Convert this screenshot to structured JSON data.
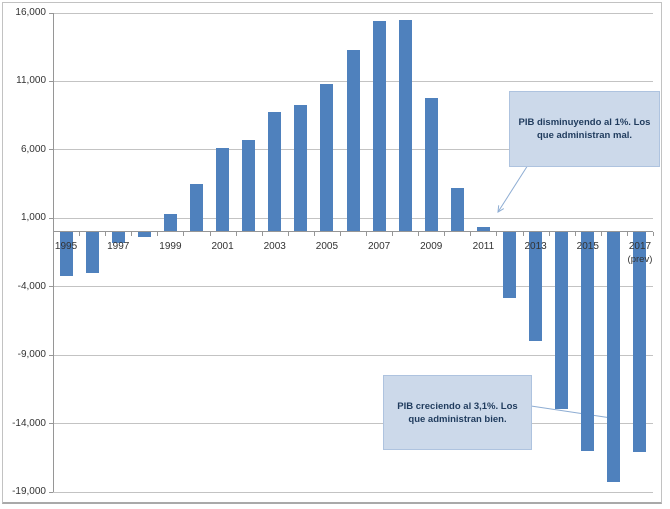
{
  "figure": {
    "description": "Bar chart of PIB (GDP) by year, 1995-2017 (prev)",
    "title": ""
  },
  "chart_data": {
    "type": "bar",
    "title": "",
    "xlabel": "",
    "ylabel": "",
    "legend": "none",
    "grid": "horizontal",
    "categories": [
      "1995",
      "1996",
      "1997",
      "1998",
      "1999",
      "2000",
      "2001",
      "2002",
      "2003",
      "2004",
      "2005",
      "2006",
      "2007",
      "2008",
      "2009",
      "2010",
      "2011",
      "2012",
      "2013",
      "2014",
      "2015",
      "2016",
      "2017"
    ],
    "values": [
      -3200,
      -3000,
      -800,
      -400,
      1300,
      3500,
      6100,
      6700,
      8800,
      9300,
      10800,
      13300,
      15400,
      15500,
      9800,
      3200,
      350,
      -4800,
      -8000,
      -12900,
      -16000,
      -18300,
      -16100
    ],
    "y_axis": {
      "min": -19000,
      "max": 16000,
      "step": 5000,
      "tick_labels": [
        "16,000",
        "11,000",
        "6,000",
        "1,000",
        "-4,000",
        "-9,000",
        "-14,000",
        "-19,000"
      ]
    },
    "x_axis": {
      "tick_labels": [
        "1995",
        "1997",
        "1999",
        "2001",
        "2003",
        "2005",
        "2007",
        "2009",
        "2011",
        "2013",
        "2015",
        "2017"
      ],
      "prev_note": "(prev)"
    }
  },
  "callouts": [
    {
      "id": "pib-disminuyendo",
      "lines": [
        "PIB disminuyendo al 1%. Los",
        "que administran mal."
      ]
    },
    {
      "id": "pib-creciendo",
      "lines": [
        "PIB creciendo al 3,1%. Los",
        "que administran bien."
      ]
    }
  ],
  "colors": {
    "bar": "#4f81bd",
    "gridline": "#c3c3c3",
    "axis": "#969696",
    "label": "#333333",
    "arrow": "#8eadd3",
    "callout_fill": "#ccd9ea",
    "callout_border": "#aec3df",
    "callout_text": "#1f3b5d",
    "frame_border": "#c2c2c2"
  }
}
